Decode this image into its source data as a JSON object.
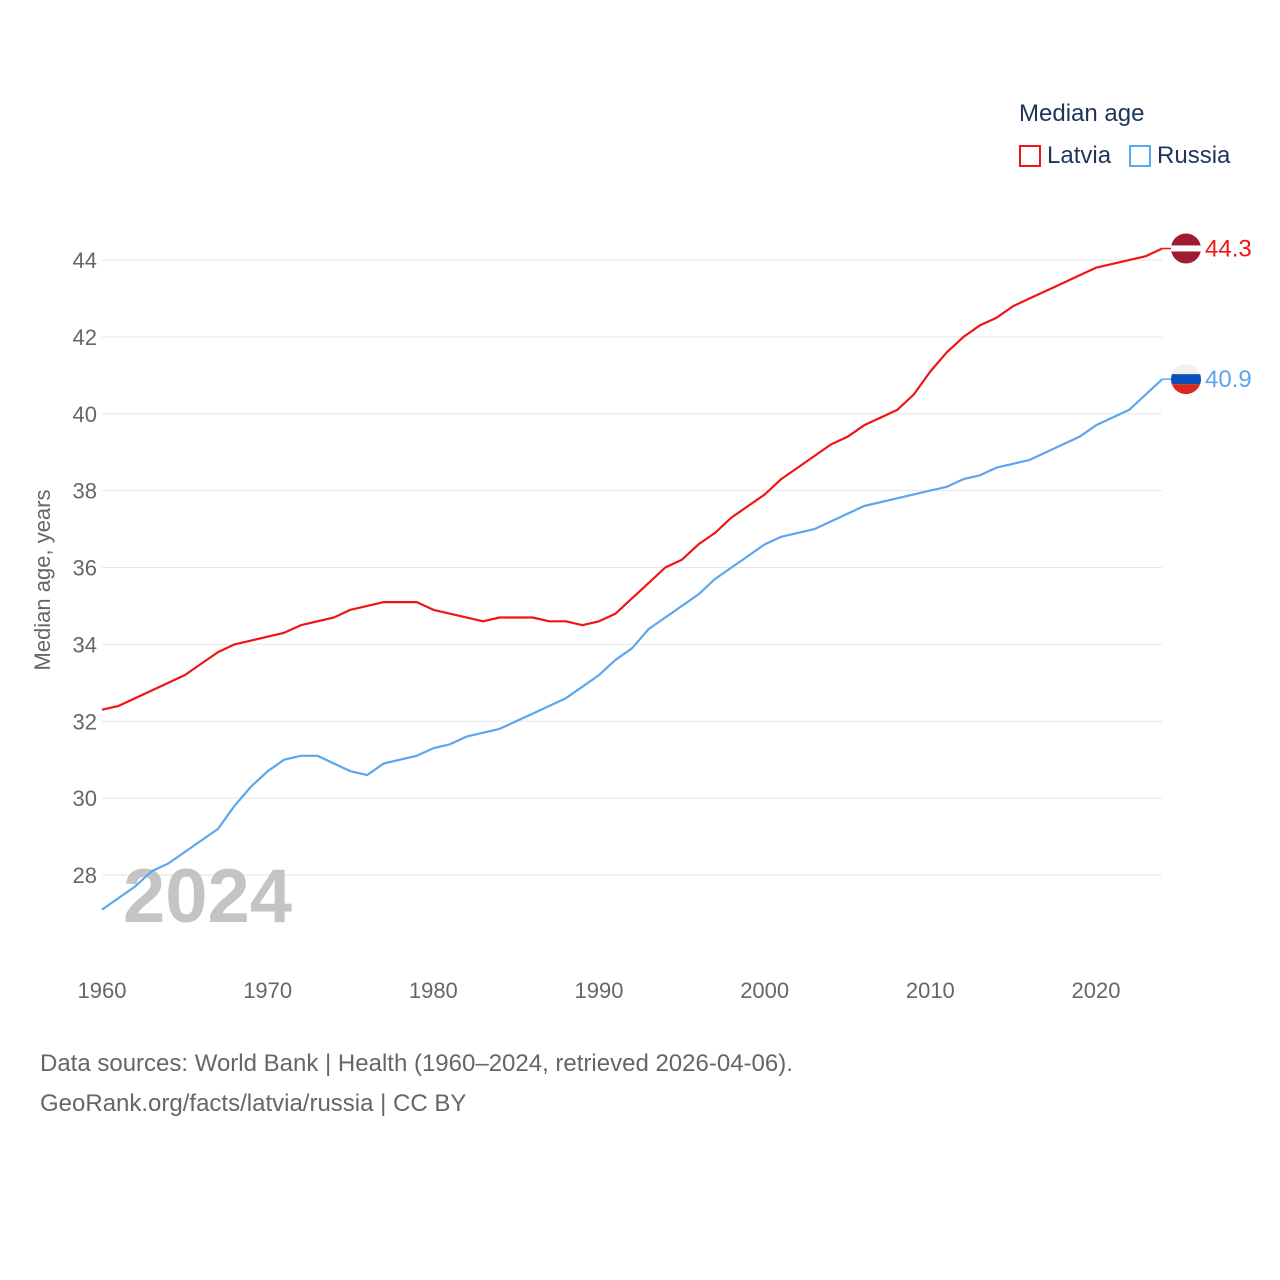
{
  "chart_data": {
    "type": "line",
    "title": "Median age",
    "xlabel": "",
    "ylabel": "Median age, years",
    "xlim": [
      1960,
      2024
    ],
    "ylim": [
      26.5,
      45.5
    ],
    "x_ticks": [
      "1960",
      "1970",
      "1980",
      "1990",
      "2000",
      "2010",
      "2020"
    ],
    "y_ticks": [
      "28",
      "30",
      "32",
      "34",
      "36",
      "38",
      "40",
      "42",
      "44"
    ],
    "grid": true,
    "legend_position": "top-right",
    "year_watermark": "2024",
    "series": [
      {
        "name": "Latvia",
        "color": "#f01414",
        "end_label": "44.3",
        "x": [
          1960,
          1961,
          1965,
          1967,
          1968,
          1971,
          1972,
          1974,
          1975,
          1977,
          1979,
          1980,
          1983,
          1984,
          1986,
          1987,
          1988,
          1989,
          1990,
          1991,
          1994,
          1995,
          1996,
          1997,
          1998,
          2000,
          2001,
          2003,
          2004,
          2005,
          2006,
          2008,
          2009,
          2010,
          2011,
          2012,
          2013,
          2014,
          2015,
          2016,
          2018,
          2019,
          2020,
          2023,
          2024
        ],
        "y": [
          32.3,
          32.4,
          33.2,
          33.8,
          34.0,
          34.3,
          34.5,
          34.7,
          34.9,
          35.1,
          35.1,
          34.9,
          34.6,
          34.7,
          34.7,
          34.6,
          34.6,
          34.5,
          34.6,
          34.8,
          36.0,
          36.2,
          36.6,
          36.9,
          37.3,
          37.9,
          38.3,
          38.9,
          39.2,
          39.4,
          39.7,
          40.1,
          40.5,
          41.1,
          41.6,
          42.0,
          42.3,
          42.5,
          42.8,
          43.0,
          43.4,
          43.6,
          43.8,
          44.1,
          44.3
        ]
      },
      {
        "name": "Russia",
        "color": "#5ba6ec",
        "end_label": "40.9",
        "x": [
          1960,
          1962,
          1963,
          1964,
          1967,
          1968,
          1969,
          1970,
          1971,
          1972,
          1973,
          1975,
          1976,
          1977,
          1979,
          1980,
          1981,
          1982,
          1984,
          1986,
          1988,
          1990,
          1991,
          1992,
          1993,
          1994,
          1996,
          1997,
          1998,
          1999,
          2000,
          2001,
          2003,
          2005,
          2006,
          2008,
          2010,
          2011,
          2012,
          2013,
          2014,
          2016,
          2019,
          2020,
          2022,
          2024
        ],
        "y": [
          27.1,
          27.7,
          28.1,
          28.3,
          29.2,
          29.8,
          30.3,
          30.7,
          31.0,
          31.1,
          31.1,
          30.7,
          30.6,
          30.9,
          31.1,
          31.3,
          31.4,
          31.6,
          31.8,
          32.2,
          32.6,
          33.2,
          33.6,
          33.9,
          34.4,
          34.7,
          35.3,
          35.7,
          36.0,
          36.3,
          36.6,
          36.8,
          37.0,
          37.4,
          37.6,
          37.8,
          38.0,
          38.1,
          38.3,
          38.4,
          38.6,
          38.8,
          39.4,
          39.7,
          40.1,
          40.9
        ]
      }
    ]
  },
  "footer": {
    "line1": "Data sources: World Bank | Health (1960–2024, retrieved 2026-04-06).",
    "line2": "GeoRank.org/facts/latvia/russia | CC BY"
  }
}
